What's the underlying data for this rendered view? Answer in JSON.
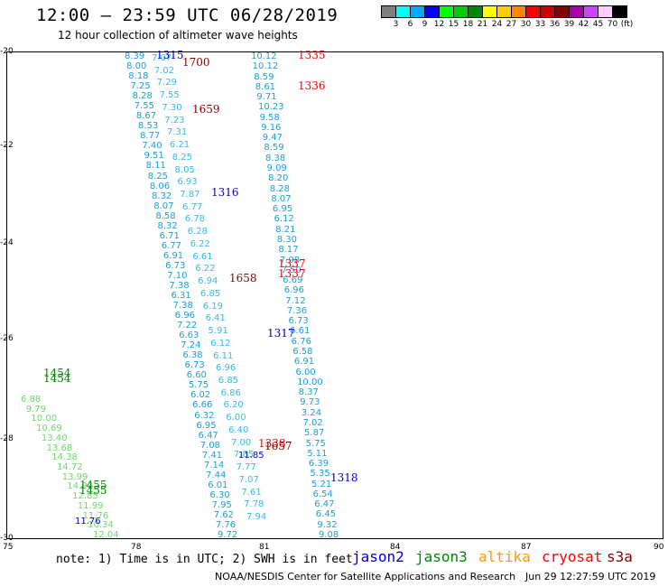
{
  "title": "12:00 — 23:59 UTC 06/28/2019",
  "subtitle": "12 hour collection of altimeter wave heights",
  "colorbar": {
    "colors": [
      "#7f7f7f",
      "#00ffff",
      "#00aaff",
      "#0000ff",
      "#00ff00",
      "#00cc00",
      "#008800",
      "#ffff00",
      "#ffcc00",
      "#ff8800",
      "#ff0000",
      "#cc0000",
      "#880000",
      "#aa00aa",
      "#cc44ff",
      "#ffccff",
      "#000000"
    ],
    "labels": [
      "3",
      "6",
      "9",
      "12",
      "15",
      "18",
      "21",
      "24",
      "27",
      "30",
      "33",
      "36",
      "39",
      "42",
      "45",
      "70",
      "(ft)"
    ]
  },
  "axes": {
    "x_ticks": [
      "75",
      "78",
      "81",
      "84",
      "87",
      "90"
    ],
    "y_ticks": [
      "-20",
      "-22",
      "-24",
      "-26",
      "-28",
      "-30"
    ]
  },
  "pass_labels": [
    {
      "text": "1315",
      "color": "#0000cc"
    },
    {
      "text": "1700",
      "color": "#880000"
    },
    {
      "text": "1335",
      "color": "#ff0000"
    },
    {
      "text": "1336",
      "color": "#ff0000"
    },
    {
      "text": "1659",
      "color": "#880000"
    },
    {
      "text": "1316",
      "color": "#0000cc"
    },
    {
      "text": "1337",
      "color": "#ff0000"
    },
    {
      "text": "1337",
      "color": "#ff0000"
    },
    {
      "text": "1658",
      "color": "#880000"
    },
    {
      "text": "1317",
      "color": "#0000cc"
    },
    {
      "text": "1454",
      "color": "#008800"
    },
    {
      "text": "1454",
      "color": "#008800"
    },
    {
      "text": "1338",
      "color": "#ff0000"
    },
    {
      "text": "1657",
      "color": "#880000"
    },
    {
      "text": "1318",
      "color": "#0000cc"
    },
    {
      "text": "1455",
      "color": "#008800"
    },
    {
      "text": "1455",
      "color": "#008800"
    }
  ],
  "track_a": [
    "8.39",
    "8.00",
    "8.18",
    "7.25",
    "8.28",
    "7.55",
    "8.67",
    "8.53",
    "8.77",
    "7.40",
    "9.51",
    "8.11",
    "8.25",
    "8.06",
    "8.32",
    "8.07",
    "8.58",
    "8.32",
    "6.71",
    "6.77",
    "6.91",
    "6.73",
    "7.10",
    "7.38",
    "6.31",
    "7.38",
    "6.96",
    "7.22",
    "6.63",
    "7.24",
    "6.38",
    "6.73",
    "6.60",
    "5.75",
    "6.02",
    "6.66",
    "6.32",
    "6.95",
    "6.47",
    "7.08",
    "7.41",
    "7.14",
    "7.44",
    "6.01",
    "6.30",
    "7.95",
    "7.62",
    "7.76",
    "9.72"
  ],
  "track_a2": [
    "7.07",
    "7.02",
    "7.29",
    "7.55",
    "7.30",
    "7.23",
    "7.31",
    "6.21",
    "8.25",
    "8.05",
    "6.93",
    "7.87",
    "6.77",
    "6.78",
    "6.28",
    "6.22",
    "6.61",
    "6.22",
    "6.94",
    "6.85",
    "6.19",
    "6.41",
    "5.91",
    "6.12",
    "6.11",
    "6.96",
    "6.85",
    "6.86",
    "6.20",
    "6.00",
    "6.40",
    "7.00",
    "7.85",
    "7.77",
    "7.07",
    "7.61",
    "7.78",
    "7.94"
  ],
  "track_b": [
    "10.12",
    "10.12",
    "8.59",
    "8.61",
    "9.71",
    "10.23",
    "9.58",
    "9.16",
    "9.47",
    "8.59",
    "8.38",
    "9.09",
    "8.20",
    "8.28",
    "8.07",
    "6.95",
    "6.12",
    "8.21",
    "8.30",
    "8.17",
    "7.98",
    "7.50",
    "6.69",
    "6.96",
    "7.12",
    "7.36",
    "6.73",
    "6.61",
    "6.76",
    "6.58",
    "6.91",
    "6.00",
    "10.00",
    "8.37",
    "9.73",
    "3.24",
    "7.02",
    "5.87",
    "5.75",
    "5.11",
    "6.39",
    "5.35",
    "5.21",
    "6.54",
    "6.47",
    "6.45",
    "9.32",
    "9.08"
  ],
  "track_c": [
    "6.88",
    "9.79",
    "10.00",
    "10.69",
    "13.40",
    "13.68",
    "14.38",
    "14.72",
    "13.99",
    "14.90",
    "12.85",
    "11.99",
    "11.76",
    "10.34",
    "12.04"
  ],
  "track_c_dark": [
    "11.76",
    "11.85"
  ],
  "notes": {
    "note": "note:  1) Time is in UTC; 2) SWH is in feet",
    "credit": "NOAA/NESDIS Center for Satellite Applications and Research",
    "timestamp": "Jun 29 12:27:59 UTC 2019"
  },
  "legend": [
    {
      "name": "jason2",
      "color": "#0000cc"
    },
    {
      "name": "jason3",
      "color": "#008800"
    },
    {
      "name": "altika",
      "color": "#ff9900"
    },
    {
      "name": "cryosat",
      "color": "#ff0000"
    },
    {
      "name": "s3a",
      "color": "#880000"
    }
  ]
}
